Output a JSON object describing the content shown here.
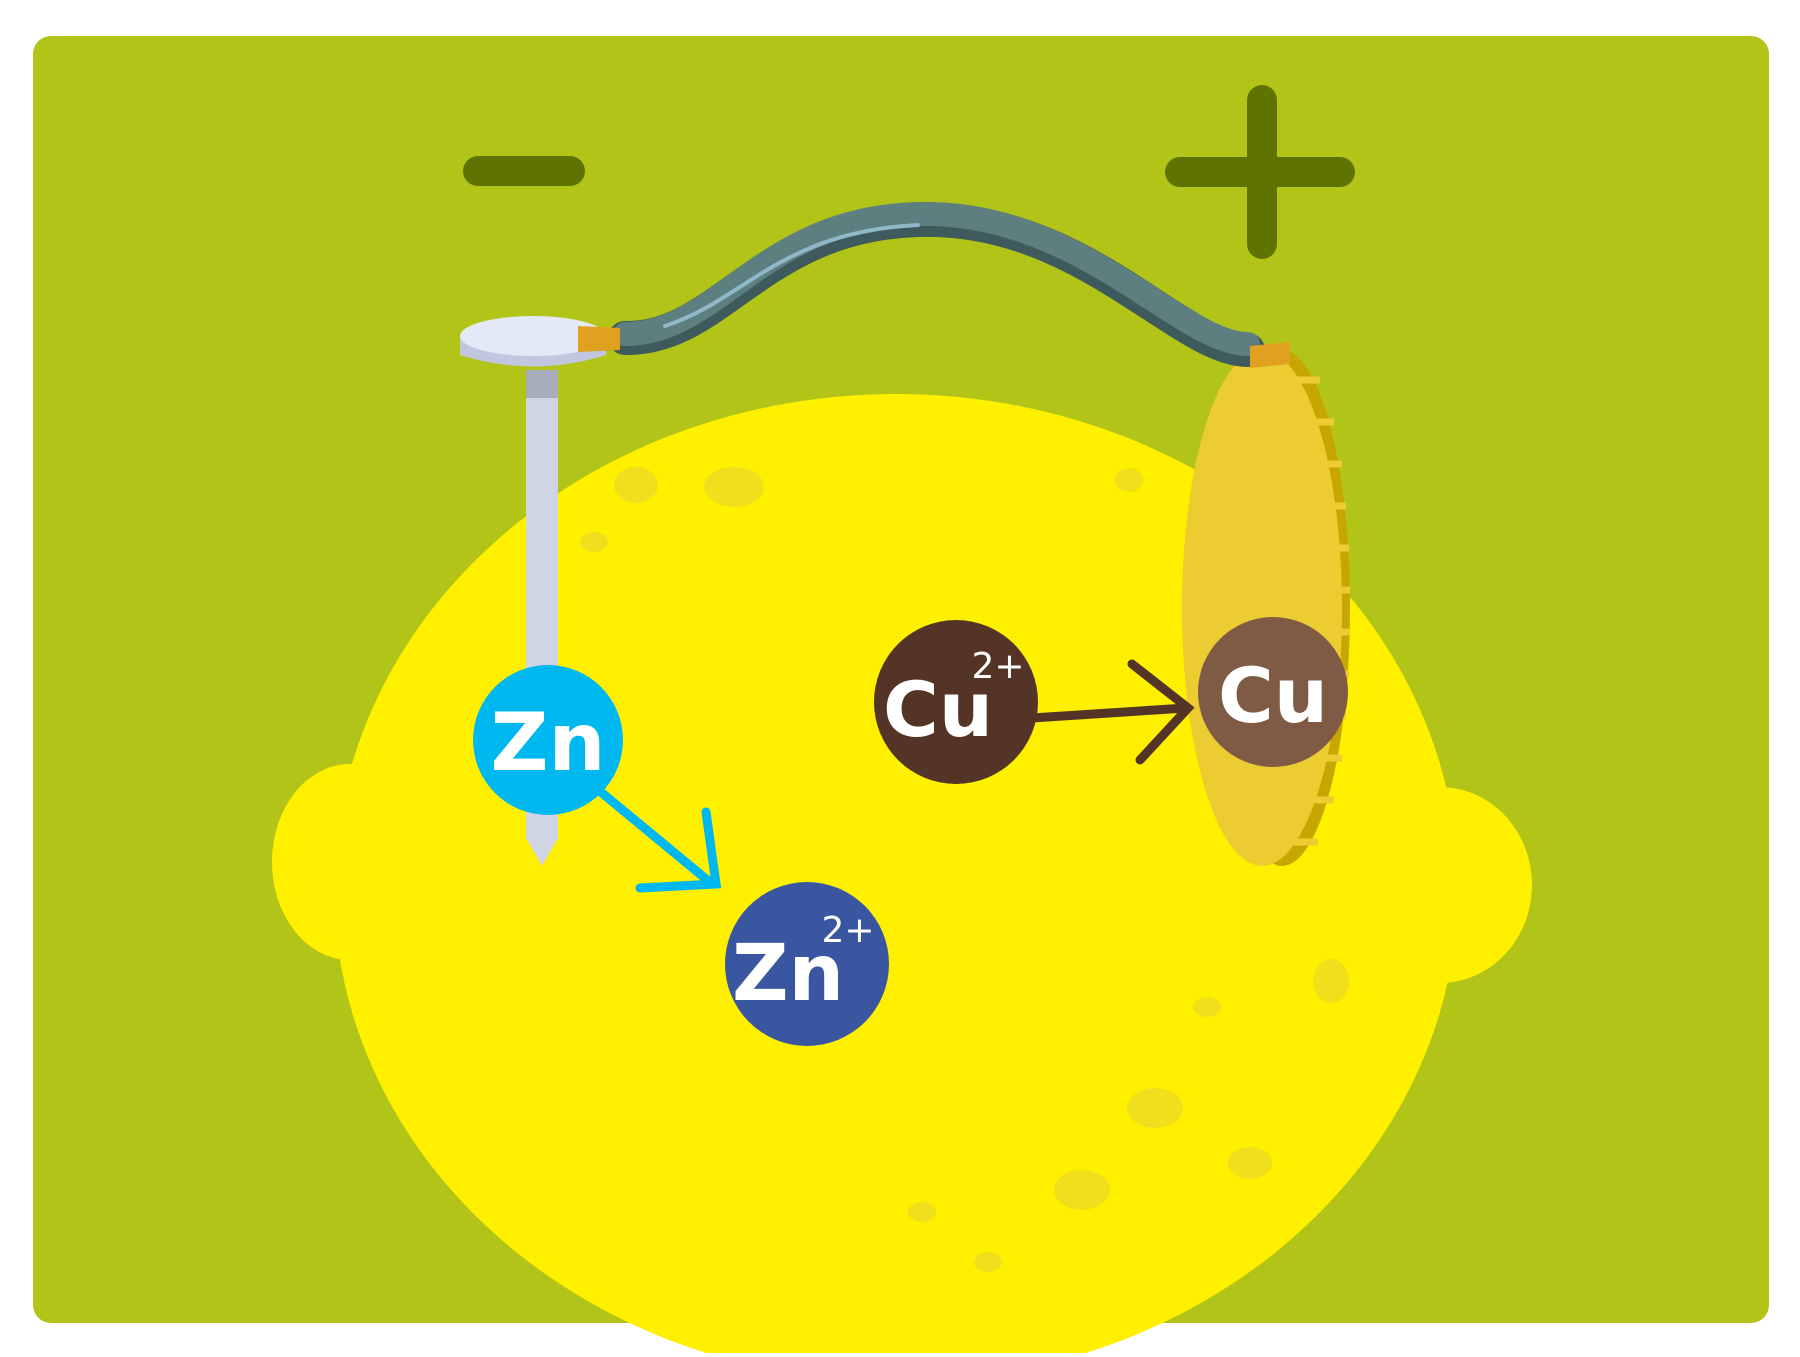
{
  "terminals": {
    "negative": "−",
    "positive": "+"
  },
  "atoms": {
    "zinc": {
      "symbol": "Zn",
      "charge": ""
    },
    "zinc_ion": {
      "symbol": "Zn",
      "charge": "2+"
    },
    "copper_ion": {
      "symbol": "Cu",
      "charge": "2+"
    },
    "copper": {
      "symbol": "Cu",
      "charge": ""
    }
  },
  "colors": {
    "background_panel": "#b2c418",
    "lemon": "#fff000",
    "lemon_spot": "#f0df1c",
    "terminal_sign": "#5f7400",
    "nail": "#d0d5e4",
    "zinc": "#00b8f0",
    "zinc_ion": "#3a56a0",
    "copper_ion": "#543426",
    "copper": "#7f5a45",
    "coin_face": "#eccc30",
    "coin_edge": "#c8a600",
    "wire": "#5d7f7f",
    "wire_tip": "#e0a020"
  }
}
